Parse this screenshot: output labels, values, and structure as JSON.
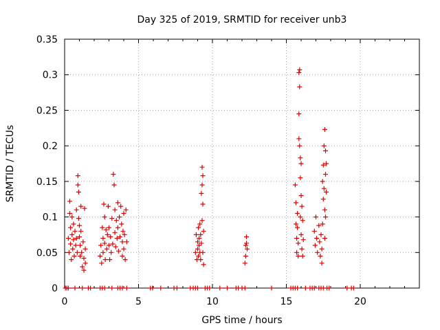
{
  "chart_data": {
    "type": "scatter",
    "title": "Day 325 of 2019, SRMTID for receiver unb3",
    "xlabel": "GPS time / hours",
    "ylabel": "SRMTID / TECUs",
    "xlim": [
      0,
      24
    ],
    "ylim": [
      0,
      0.35
    ],
    "xticks": [
      0,
      5,
      10,
      15,
      20
    ],
    "xtick_labels": [
      "0",
      "5",
      "10",
      "15",
      "20"
    ],
    "yticks": [
      0,
      0.05,
      0.1,
      0.15,
      0.2,
      0.25,
      0.3,
      0.35
    ],
    "ytick_labels": [
      "0",
      "0.05",
      "0.1",
      "0.15",
      "0.2",
      "0.25",
      "0.3",
      "0.35"
    ],
    "grid": true,
    "marker": "+",
    "colors": {
      "series": "#dd0000",
      "grid": "#a0a0a0",
      "axis": "#000000"
    },
    "series": [
      {
        "name": "SRMTID",
        "points": [
          [
            0.05,
            0
          ],
          [
            0.15,
            0
          ],
          [
            0.25,
            0
          ],
          [
            0.7,
            0
          ],
          [
            1.2,
            0
          ],
          [
            1.6,
            0
          ],
          [
            1.75,
            0
          ],
          [
            2.4,
            0
          ],
          [
            2.55,
            0
          ],
          [
            2.7,
            0
          ],
          [
            3.2,
            0
          ],
          [
            3.6,
            0
          ],
          [
            3.75,
            0
          ],
          [
            3.9,
            0
          ],
          [
            4.2,
            0
          ],
          [
            5.8,
            0
          ],
          [
            5.95,
            0
          ],
          [
            6.5,
            0
          ],
          [
            7.4,
            0
          ],
          [
            7.6,
            0
          ],
          [
            8.5,
            0
          ],
          [
            8.7,
            0
          ],
          [
            8.85,
            0
          ],
          [
            9.0,
            0
          ],
          [
            9.5,
            0
          ],
          [
            9.65,
            0
          ],
          [
            9.8,
            0
          ],
          [
            10.5,
            0
          ],
          [
            11.0,
            0
          ],
          [
            11.6,
            0
          ],
          [
            11.75,
            0
          ],
          [
            12.0,
            0
          ],
          [
            12.2,
            0
          ],
          [
            14.0,
            0
          ],
          [
            15.3,
            0
          ],
          [
            15.45,
            0
          ],
          [
            15.6,
            0
          ],
          [
            15.75,
            0
          ],
          [
            16.3,
            0
          ],
          [
            16.6,
            0
          ],
          [
            16.75,
            0
          ],
          [
            16.9,
            0
          ],
          [
            17.2,
            0
          ],
          [
            17.35,
            0
          ],
          [
            17.5,
            0
          ],
          [
            17.75,
            0
          ],
          [
            17.9,
            0
          ],
          [
            19.1,
            0
          ],
          [
            19.4,
            0
          ],
          [
            19.55,
            0
          ],
          [
            0.25,
            0.07
          ],
          [
            0.3,
            0.05
          ],
          [
            0.35,
            0.122
          ],
          [
            0.35,
            0.105
          ],
          [
            0.4,
            0.085
          ],
          [
            0.4,
            0.062
          ],
          [
            0.45,
            0.04
          ],
          [
            0.5,
            0.1
          ],
          [
            0.5,
            0.075
          ],
          [
            0.55,
            0.055
          ],
          [
            0.6,
            0.09
          ],
          [
            0.6,
            0.068
          ],
          [
            0.65,
            0.045
          ],
          [
            0.7,
            0.08
          ],
          [
            0.75,
            0.06
          ],
          [
            0.8,
            0.11
          ],
          [
            0.8,
            0.07
          ],
          [
            0.85,
            0.05
          ],
          [
            0.9,
            0.158
          ],
          [
            0.9,
            0.145
          ],
          [
            0.95,
            0.135
          ],
          [
            0.95,
            0.098
          ],
          [
            1.0,
            0.088
          ],
          [
            1.0,
            0.072
          ],
          [
            1.05,
            0.06
          ],
          [
            1.05,
            0.045
          ],
          [
            1.1,
            0.115
          ],
          [
            1.1,
            0.08
          ],
          [
            1.15,
            0.05
          ],
          [
            1.2,
            0.03
          ],
          [
            1.25,
            0.065
          ],
          [
            1.3,
            0.042
          ],
          [
            1.3,
            0.025
          ],
          [
            1.35,
            0.112
          ],
          [
            1.4,
            0.055
          ],
          [
            1.4,
            0.035
          ],
          [
            2.4,
            0.045
          ],
          [
            2.45,
            0.06
          ],
          [
            2.5,
            0.035
          ],
          [
            2.55,
            0.085
          ],
          [
            2.6,
            0.07
          ],
          [
            2.6,
            0.05
          ],
          [
            2.65,
            0.118
          ],
          [
            2.7,
            0.1
          ],
          [
            2.7,
            0.063
          ],
          [
            2.75,
            0.04
          ],
          [
            2.8,
            0.082
          ],
          [
            2.85,
            0.055
          ],
          [
            2.9,
            0.075
          ],
          [
            2.95,
            0.115
          ],
          [
            3.0,
            0.085
          ],
          [
            3.0,
            0.06
          ],
          [
            3.05,
            0.04
          ],
          [
            3.1,
            0.072
          ],
          [
            3.15,
            0.05
          ],
          [
            3.2,
            0.098
          ],
          [
            3.25,
            0.062
          ],
          [
            3.3,
            0.16
          ],
          [
            3.35,
            0.145
          ],
          [
            3.4,
            0.11
          ],
          [
            3.4,
            0.078
          ],
          [
            3.45,
            0.058
          ],
          [
            3.5,
            0.095
          ],
          [
            3.55,
            0.07
          ],
          [
            3.6,
            0.12
          ],
          [
            3.6,
            0.085
          ],
          [
            3.65,
            0.052
          ],
          [
            3.7,
            0.1
          ],
          [
            3.75,
            0.072
          ],
          [
            3.8,
            0.115
          ],
          [
            3.85,
            0.09
          ],
          [
            3.9,
            0.065
          ],
          [
            3.9,
            0.045
          ],
          [
            3.95,
            0.08
          ],
          [
            4.0,
            0.105
          ],
          [
            4.0,
            0.055
          ],
          [
            4.05,
            0.075
          ],
          [
            4.1,
            0.04
          ],
          [
            4.15,
            0.11
          ],
          [
            4.2,
            0.065
          ],
          [
            8.85,
            0.05
          ],
          [
            8.9,
            0.075
          ],
          [
            8.95,
            0.04
          ],
          [
            9.0,
            0.065
          ],
          [
            9.0,
            0.055
          ],
          [
            9.05,
            0.085
          ],
          [
            9.05,
            0.045
          ],
          [
            9.1,
            0.07
          ],
          [
            9.1,
            0.06
          ],
          [
            9.15,
            0.09
          ],
          [
            9.15,
            0.05
          ],
          [
            9.2,
            0.075
          ],
          [
            9.2,
            0.04
          ],
          [
            9.25,
            0.133
          ],
          [
            9.25,
            0.063
          ],
          [
            9.3,
            0.17
          ],
          [
            9.3,
            0.145
          ],
          [
            9.3,
            0.095
          ],
          [
            9.35,
            0.158
          ],
          [
            9.35,
            0.118
          ],
          [
            9.35,
            0.05
          ],
          [
            9.4,
            0.08
          ],
          [
            9.4,
            0.033
          ],
          [
            12.2,
            0.035
          ],
          [
            12.25,
            0.06
          ],
          [
            12.25,
            0.045
          ],
          [
            12.3,
            0.072
          ],
          [
            12.3,
            0.063
          ],
          [
            12.35,
            0.055
          ],
          [
            15.6,
            0.145
          ],
          [
            15.65,
            0.12
          ],
          [
            15.65,
            0.09
          ],
          [
            15.7,
            0.07
          ],
          [
            15.7,
            0.05
          ],
          [
            15.75,
            0.105
          ],
          [
            15.75,
            0.085
          ],
          [
            15.8,
            0.063
          ],
          [
            15.8,
            0.045
          ],
          [
            15.85,
            0.303
          ],
          [
            15.85,
            0.245
          ],
          [
            15.85,
            0.21
          ],
          [
            15.9,
            0.307
          ],
          [
            15.9,
            0.283
          ],
          [
            15.9,
            0.2
          ],
          [
            15.95,
            0.183
          ],
          [
            15.95,
            0.155
          ],
          [
            15.95,
            0.1
          ],
          [
            16.0,
            0.175
          ],
          [
            16.0,
            0.13
          ],
          [
            16.0,
            0.075
          ],
          [
            16.05,
            0.115
          ],
          [
            16.05,
            0.055
          ],
          [
            16.1,
            0.095
          ],
          [
            16.1,
            0.045
          ],
          [
            16.15,
            0.068
          ],
          [
            16.9,
            0.08
          ],
          [
            16.95,
            0.06
          ],
          [
            17.0,
            0.1
          ],
          [
            17.05,
            0.07
          ],
          [
            17.1,
            0.05
          ],
          [
            17.2,
            0.088
          ],
          [
            17.25,
            0.065
          ],
          [
            17.3,
            0.045
          ],
          [
            17.35,
            0.075
          ],
          [
            17.4,
            0.055
          ],
          [
            17.4,
            0.035
          ],
          [
            17.45,
            0.15
          ],
          [
            17.45,
            0.09
          ],
          [
            17.5,
            0.173
          ],
          [
            17.5,
            0.125
          ],
          [
            17.55,
            0.2
          ],
          [
            17.55,
            0.14
          ],
          [
            17.6,
            0.223
          ],
          [
            17.6,
            0.11
          ],
          [
            17.6,
            0.07
          ],
          [
            17.65,
            0.193
          ],
          [
            17.65,
            0.16
          ],
          [
            17.65,
            0.1
          ],
          [
            17.7,
            0.175
          ],
          [
            17.7,
            0.135
          ]
        ]
      }
    ]
  }
}
